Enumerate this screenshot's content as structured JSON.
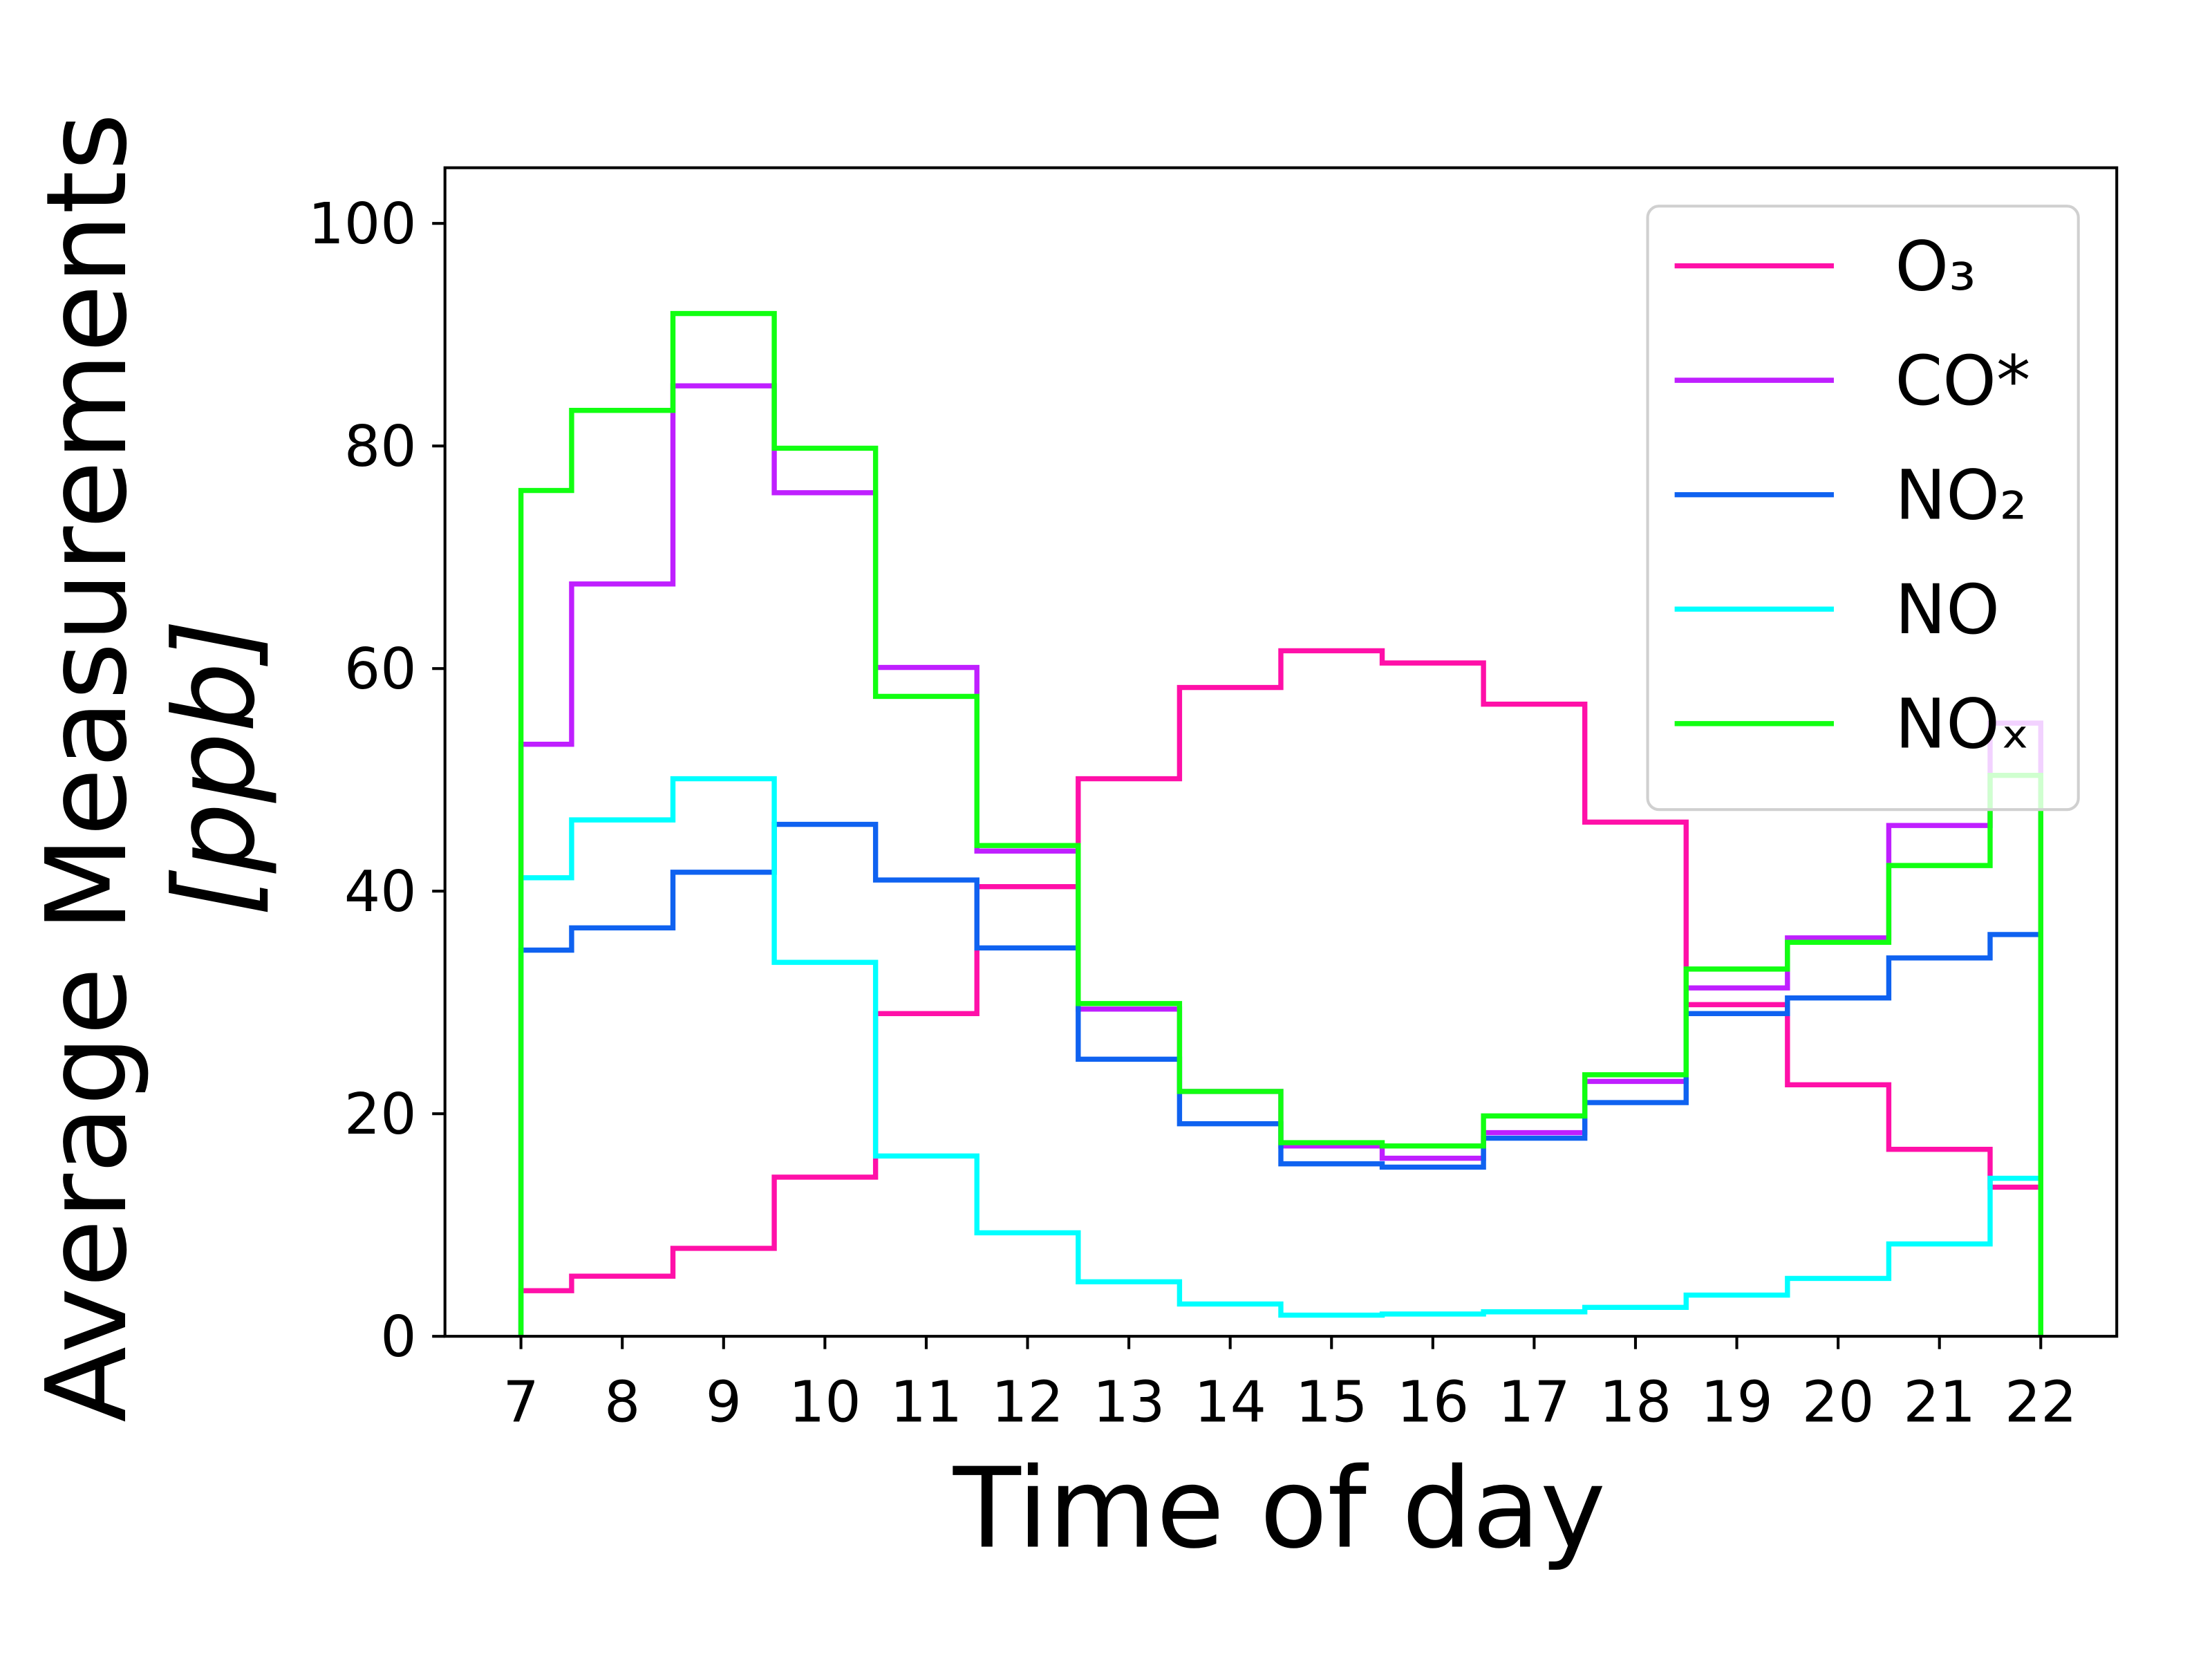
{
  "chart_data": {
    "type": "step",
    "xlabel": "Time of day",
    "ylabel": [
      "Average Measurements",
      "[ppb]"
    ],
    "x": [
      7,
      8,
      9,
      10,
      11,
      12,
      13,
      14,
      15,
      16,
      17,
      18,
      19,
      20,
      21,
      22
    ],
    "series": [
      {
        "name": "O₃",
        "color": "#ff10a8",
        "values": [
          4.1,
          5.4,
          7.9,
          14.3,
          29.0,
          40.4,
          50.1,
          58.3,
          61.6,
          60.5,
          56.8,
          46.2,
          29.8,
          22.6,
          16.8,
          13.4
        ]
      },
      {
        "name": "CO*",
        "color": "#bf1fff",
        "values": [
          53.2,
          67.6,
          85.4,
          75.8,
          60.1,
          43.6,
          29.4,
          22.0,
          17.1,
          16.0,
          18.3,
          22.9,
          31.3,
          35.8,
          45.9,
          55.1
        ]
      },
      {
        "name": "NO₂",
        "color": "#0f62f0",
        "values": [
          34.7,
          36.7,
          41.7,
          46.0,
          41.0,
          34.9,
          24.9,
          19.1,
          15.5,
          15.2,
          17.8,
          21.0,
          29.0,
          30.4,
          34.0,
          36.1
        ]
      },
      {
        "name": "NO",
        "color": "#00ffff",
        "values": [
          41.2,
          46.4,
          50.1,
          33.6,
          16.2,
          9.3,
          4.9,
          2.9,
          1.9,
          2.0,
          2.2,
          2.6,
          3.7,
          5.2,
          8.3,
          14.2
        ]
      },
      {
        "name": "NOₓ",
        "color": "#11ff11",
        "values": [
          76.0,
          83.2,
          91.9,
          79.8,
          57.5,
          44.1,
          29.9,
          22.0,
          17.4,
          17.1,
          19.8,
          23.5,
          33.0,
          35.4,
          42.3,
          50.4
        ]
      }
    ],
    "xlim": [
      6.25,
      22.75
    ],
    "ylim": [
      0,
      105
    ],
    "xticks": [
      7,
      8,
      9,
      10,
      11,
      12,
      13,
      14,
      15,
      16,
      17,
      18,
      19,
      20,
      21,
      22
    ],
    "yticks": [
      0,
      20,
      40,
      60,
      80,
      100
    ],
    "legend": "upper right",
    "grid": false
  }
}
